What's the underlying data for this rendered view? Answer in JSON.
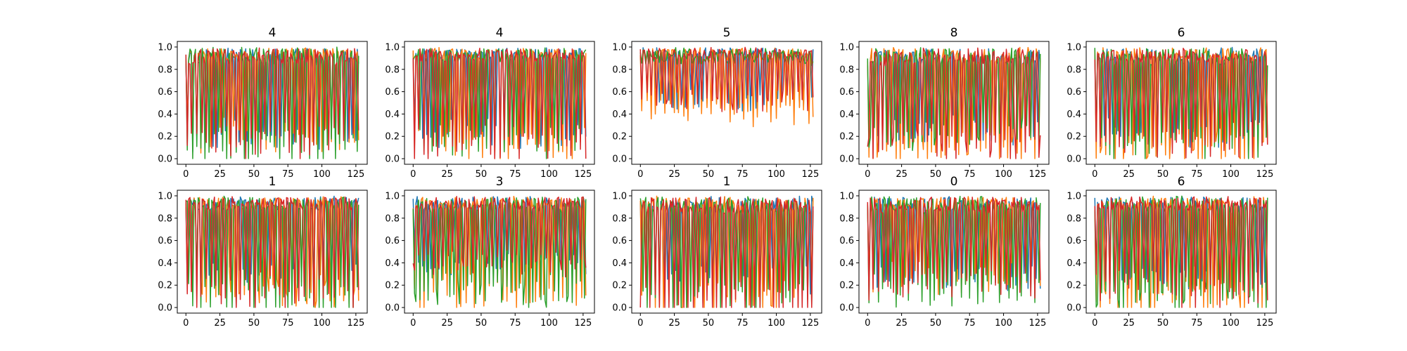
{
  "figure": {
    "background": "#ffffff"
  },
  "colors": [
    "#1f77b4",
    "#ff7f0e",
    "#2ca02c",
    "#d62728"
  ],
  "chart_data": [
    {
      "type": "line",
      "title": "4",
      "xlim": [
        0,
        127
      ],
      "ylim": [
        0.0,
        1.0
      ],
      "xticks": [
        0,
        25,
        50,
        75,
        100,
        125
      ],
      "yticks": [
        0.0,
        0.2,
        0.4,
        0.6,
        0.8,
        1.0
      ],
      "xlabel": "",
      "ylabel": "",
      "legend": "none",
      "grid": false,
      "series": [
        {
          "color": "#1f77b4",
          "period": 3.1,
          "phase": 0.2,
          "base": 0.72,
          "drop": 0.6,
          "noise": 0.25,
          "seed": 11
        },
        {
          "color": "#ff7f0e",
          "period": 3.4,
          "phase": 1.0,
          "base": 0.8,
          "drop": 0.7,
          "noise": 0.2,
          "seed": 12
        },
        {
          "color": "#2ca02c",
          "period": 3.2,
          "phase": 0.5,
          "base": 0.78,
          "drop": 0.85,
          "noise": 0.2,
          "seed": 13
        },
        {
          "color": "#d62728",
          "period": 3.6,
          "phase": 1.7,
          "base": 0.8,
          "drop": 0.75,
          "noise": 0.25,
          "seed": 14
        }
      ]
    },
    {
      "type": "line",
      "title": "4",
      "xlim": [
        0,
        127
      ],
      "ylim": [
        0.0,
        1.0
      ],
      "xticks": [
        0,
        25,
        50,
        75,
        100,
        125
      ],
      "yticks": [
        0.0,
        0.2,
        0.4,
        0.6,
        0.8,
        1.0
      ],
      "xlabel": "",
      "ylabel": "",
      "legend": "none",
      "grid": false,
      "series": [
        {
          "color": "#1f77b4",
          "period": 3.0,
          "phase": 0.4,
          "base": 0.75,
          "drop": 0.6,
          "noise": 0.2,
          "seed": 21
        },
        {
          "color": "#ff7f0e",
          "period": 3.3,
          "phase": 1.2,
          "base": 0.78,
          "drop": 0.8,
          "noise": 0.2,
          "seed": 22
        },
        {
          "color": "#2ca02c",
          "period": 3.1,
          "phase": 0.1,
          "base": 0.8,
          "drop": 0.75,
          "noise": 0.2,
          "seed": 23
        },
        {
          "color": "#d62728",
          "period": 3.5,
          "phase": 2.0,
          "base": 0.8,
          "drop": 0.8,
          "noise": 0.2,
          "seed": 24
        }
      ]
    },
    {
      "type": "line",
      "title": "5",
      "xlim": [
        0,
        127
      ],
      "ylim": [
        0.0,
        1.0
      ],
      "xticks": [
        0,
        25,
        50,
        75,
        100,
        125
      ],
      "yticks": [
        0.0,
        0.2,
        0.4,
        0.6,
        0.8,
        1.0
      ],
      "xlabel": "",
      "ylabel": "",
      "legend": "none",
      "grid": false,
      "series": [
        {
          "color": "#1f77b4",
          "period": 3.2,
          "phase": 0.3,
          "base": 0.85,
          "drop": 0.35,
          "noise": 0.15,
          "seed": 31
        },
        {
          "color": "#ff7f0e",
          "period": 3.4,
          "phase": 0.9,
          "base": 0.82,
          "drop": 0.45,
          "noise": 0.2,
          "seed": 32
        },
        {
          "color": "#2ca02c",
          "period": 3.0,
          "phase": 0.0,
          "base": 0.7,
          "drop": 0.6,
          "noise": 0.25,
          "seed": 33
        },
        {
          "color": "#d62728",
          "period": 3.7,
          "phase": 1.5,
          "base": 0.88,
          "drop": 0.4,
          "noise": 0.15,
          "seed": 34
        }
      ]
    },
    {
      "type": "line",
      "title": "8",
      "xlim": [
        0,
        127
      ],
      "ylim": [
        0.0,
        1.0
      ],
      "xticks": [
        0,
        25,
        50,
        75,
        100,
        125
      ],
      "yticks": [
        0.0,
        0.2,
        0.4,
        0.6,
        0.8,
        1.0
      ],
      "xlabel": "",
      "ylabel": "",
      "legend": "none",
      "grid": false,
      "series": [
        {
          "color": "#1f77b4",
          "period": 3.1,
          "phase": 0.6,
          "base": 0.78,
          "drop": 0.6,
          "noise": 0.25,
          "seed": 41
        },
        {
          "color": "#ff7f0e",
          "period": 3.3,
          "phase": 1.4,
          "base": 0.75,
          "drop": 0.75,
          "noise": 0.25,
          "seed": 42
        },
        {
          "color": "#2ca02c",
          "period": 3.2,
          "phase": 0.2,
          "base": 0.75,
          "drop": 0.6,
          "noise": 0.25,
          "seed": 43
        },
        {
          "color": "#d62728",
          "period": 3.6,
          "phase": 2.2,
          "base": 0.72,
          "drop": 0.7,
          "noise": 0.25,
          "seed": 44
        }
      ]
    },
    {
      "type": "line",
      "title": "6",
      "xlim": [
        0,
        127
      ],
      "ylim": [
        0.0,
        1.0
      ],
      "xticks": [
        0,
        25,
        50,
        75,
        100,
        125
      ],
      "yticks": [
        0.0,
        0.2,
        0.4,
        0.6,
        0.8,
        1.0
      ],
      "xlabel": "",
      "ylabel": "",
      "legend": "none",
      "grid": false,
      "series": [
        {
          "color": "#1f77b4",
          "period": 3.0,
          "phase": 0.5,
          "base": 0.78,
          "drop": 0.65,
          "noise": 0.25,
          "seed": 51
        },
        {
          "color": "#ff7f0e",
          "period": 3.4,
          "phase": 1.1,
          "base": 0.78,
          "drop": 0.8,
          "noise": 0.2,
          "seed": 52
        },
        {
          "color": "#2ca02c",
          "period": 3.2,
          "phase": 0.3,
          "base": 0.75,
          "drop": 0.7,
          "noise": 0.25,
          "seed": 53
        },
        {
          "color": "#d62728",
          "period": 3.5,
          "phase": 1.9,
          "base": 0.8,
          "drop": 0.75,
          "noise": 0.2,
          "seed": 54
        }
      ]
    },
    {
      "type": "line",
      "title": "1",
      "xlim": [
        0,
        127
      ],
      "ylim": [
        0.0,
        1.0
      ],
      "xticks": [
        0,
        25,
        50,
        75,
        100,
        125
      ],
      "yticks": [
        0.0,
        0.2,
        0.4,
        0.6,
        0.8,
        1.0
      ],
      "xlabel": "",
      "ylabel": "",
      "legend": "none",
      "grid": false,
      "series": [
        {
          "color": "#1f77b4",
          "period": 3.1,
          "phase": 0.3,
          "base": 0.8,
          "drop": 0.55,
          "noise": 0.2,
          "seed": 61
        },
        {
          "color": "#ff7f0e",
          "period": 3.5,
          "phase": 1.3,
          "base": 0.8,
          "drop": 0.75,
          "noise": 0.2,
          "seed": 62
        },
        {
          "color": "#2ca02c",
          "period": 3.2,
          "phase": 0.1,
          "base": 0.78,
          "drop": 0.8,
          "noise": 0.2,
          "seed": 63
        },
        {
          "color": "#d62728",
          "period": 3.6,
          "phase": 2.1,
          "base": 0.8,
          "drop": 0.8,
          "noise": 0.2,
          "seed": 64
        }
      ]
    },
    {
      "type": "line",
      "title": "3",
      "xlim": [
        0,
        127
      ],
      "ylim": [
        0.0,
        1.0
      ],
      "xticks": [
        0,
        25,
        50,
        75,
        100,
        125
      ],
      "yticks": [
        0.0,
        0.2,
        0.4,
        0.6,
        0.8,
        1.0
      ],
      "xlabel": "",
      "ylabel": "",
      "legend": "none",
      "grid": false,
      "series": [
        {
          "color": "#1f77b4",
          "period": 3.0,
          "phase": 0.7,
          "base": 0.82,
          "drop": 0.5,
          "noise": 0.2,
          "seed": 71
        },
        {
          "color": "#ff7f0e",
          "period": 3.4,
          "phase": 1.0,
          "base": 0.78,
          "drop": 0.75,
          "noise": 0.2,
          "seed": 72
        },
        {
          "color": "#2ca02c",
          "period": 3.2,
          "phase": 0.2,
          "base": 0.72,
          "drop": 0.65,
          "noise": 0.25,
          "seed": 73
        },
        {
          "color": "#d62728",
          "period": 3.6,
          "phase": 2.3,
          "base": 0.85,
          "drop": 0.5,
          "noise": 0.2,
          "seed": 74
        }
      ]
    },
    {
      "type": "line",
      "title": "1",
      "xlim": [
        0,
        127
      ],
      "ylim": [
        0.0,
        1.0
      ],
      "xticks": [
        0,
        25,
        50,
        75,
        100,
        125
      ],
      "yticks": [
        0.0,
        0.2,
        0.4,
        0.6,
        0.8,
        1.0
      ],
      "xlabel": "",
      "ylabel": "",
      "legend": "none",
      "grid": false,
      "series": [
        {
          "color": "#1f77b4",
          "period": 3.1,
          "phase": 0.4,
          "base": 0.8,
          "drop": 0.6,
          "noise": 0.25,
          "seed": 81
        },
        {
          "color": "#ff7f0e",
          "period": 3.3,
          "phase": 1.6,
          "base": 0.75,
          "drop": 0.8,
          "noise": 0.25,
          "seed": 82
        },
        {
          "color": "#2ca02c",
          "period": 3.2,
          "phase": 0.0,
          "base": 0.72,
          "drop": 0.75,
          "noise": 0.25,
          "seed": 83
        },
        {
          "color": "#d62728",
          "period": 3.5,
          "phase": 2.4,
          "base": 0.72,
          "drop": 0.85,
          "noise": 0.25,
          "seed": 84
        }
      ]
    },
    {
      "type": "line",
      "title": "0",
      "xlim": [
        0,
        127
      ],
      "ylim": [
        0.0,
        1.0
      ],
      "xticks": [
        0,
        25,
        50,
        75,
        100,
        125
      ],
      "yticks": [
        0.0,
        0.2,
        0.4,
        0.6,
        0.8,
        1.0
      ],
      "xlabel": "",
      "ylabel": "",
      "legend": "none",
      "grid": false,
      "series": [
        {
          "color": "#1f77b4",
          "period": 3.0,
          "phase": 0.5,
          "base": 0.78,
          "drop": 0.55,
          "noise": 0.2,
          "seed": 91
        },
        {
          "color": "#ff7f0e",
          "period": 3.4,
          "phase": 1.2,
          "base": 0.8,
          "drop": 0.6,
          "noise": 0.2,
          "seed": 92
        },
        {
          "color": "#2ca02c",
          "period": 3.2,
          "phase": 0.3,
          "base": 0.75,
          "drop": 0.7,
          "noise": 0.25,
          "seed": 93
        },
        {
          "color": "#d62728",
          "period": 3.6,
          "phase": 1.8,
          "base": 0.78,
          "drop": 0.65,
          "noise": 0.25,
          "seed": 94
        }
      ]
    },
    {
      "type": "line",
      "title": "6",
      "xlim": [
        0,
        127
      ],
      "ylim": [
        0.0,
        1.0
      ],
      "xticks": [
        0,
        25,
        50,
        75,
        100,
        125
      ],
      "yticks": [
        0.0,
        0.2,
        0.4,
        0.6,
        0.8,
        1.0
      ],
      "xlabel": "",
      "ylabel": "",
      "legend": "none",
      "grid": false,
      "series": [
        {
          "color": "#1f77b4",
          "period": 3.1,
          "phase": 0.6,
          "base": 0.8,
          "drop": 0.6,
          "noise": 0.2,
          "seed": 101
        },
        {
          "color": "#ff7f0e",
          "period": 3.3,
          "phase": 1.4,
          "base": 0.78,
          "drop": 0.8,
          "noise": 0.2,
          "seed": 102
        },
        {
          "color": "#2ca02c",
          "period": 3.2,
          "phase": 0.2,
          "base": 0.7,
          "drop": 0.7,
          "noise": 0.25,
          "seed": 103
        },
        {
          "color": "#d62728",
          "period": 3.5,
          "phase": 2.0,
          "base": 0.8,
          "drop": 0.75,
          "noise": 0.2,
          "seed": 104
        }
      ]
    }
  ]
}
